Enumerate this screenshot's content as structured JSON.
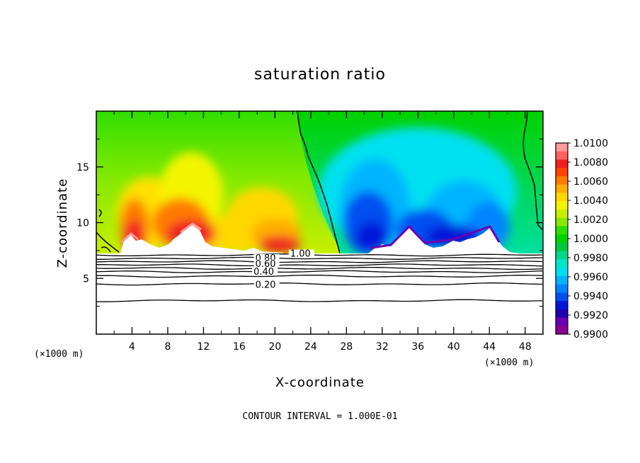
{
  "chart_data": {
    "type": "heatmap",
    "title": "saturation ratio",
    "xlabel": "X-coordinate",
    "ylabel": "Z-coordinate",
    "x_unit": "(×1000 m)",
    "z_unit": "(×1000 m)",
    "xlim": [
      0,
      50
    ],
    "ylim": [
      0,
      20
    ],
    "x_ticks": [
      "4",
      "8",
      "12",
      "16",
      "20",
      "24",
      "28",
      "32",
      "36",
      "40",
      "44",
      "48"
    ],
    "y_ticks": [
      "5",
      "10",
      "15"
    ],
    "footnote": "CONTOUR INTERVAL = 1.000E-01",
    "colorbar": {
      "labels": [
        "1.0100",
        "1.0080",
        "1.0060",
        "1.0040",
        "1.0020",
        "1.0000",
        "0.9980",
        "0.9960",
        "0.9940",
        "0.9920",
        "0.9900"
      ],
      "colors": [
        "#ff9a9a",
        "#ff6060",
        "#f02020",
        "#ff4400",
        "#ff7a00",
        "#ffae00",
        "#ffd800",
        "#f4f400",
        "#c8ef00",
        "#88ea00",
        "#30de00",
        "#00d200",
        "#00c940",
        "#00d88a",
        "#00e8c8",
        "#00e0f0",
        "#00b4ff",
        "#0084ff",
        "#0050f0",
        "#0018d8",
        "#2000b0",
        "#6a00b0",
        "#8a0090"
      ]
    },
    "contour_labels": [
      {
        "text": "1.00",
        "x": 21.7,
        "z": 7.2
      },
      {
        "text": "0.80",
        "x": 17.8,
        "z": 6.8
      },
      {
        "text": "0.60",
        "x": 17.8,
        "z": 6.3
      },
      {
        "text": "0.40",
        "x": 17.6,
        "z": 5.6
      },
      {
        "text": "0.20",
        "x": 17.8,
        "z": 4.4
      }
    ],
    "contour_lines_z": [
      7.1,
      6.8,
      6.5,
      6.2,
      5.9,
      5.6,
      5.2,
      4.5,
      3.0
    ]
  }
}
